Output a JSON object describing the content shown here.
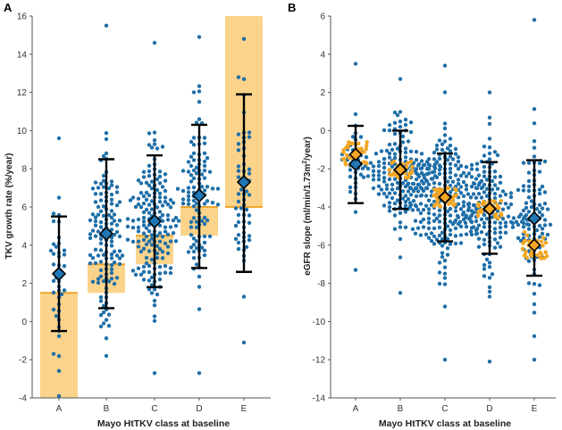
{
  "chart_data": [
    {
      "panel": "A",
      "type": "scatter",
      "title": "",
      "xlabel": "Mayo HtTKV class at baseline",
      "ylabel": "TKV growth rate (%/year)",
      "categories": [
        "A",
        "B",
        "C",
        "D",
        "E"
      ],
      "ylim": [
        -4,
        16
      ],
      "yticks": [
        -4,
        -2,
        0,
        2,
        4,
        6,
        8,
        10,
        12,
        14,
        16
      ],
      "reference_bands": [
        {
          "category": "A",
          "low": -4,
          "high": 1.5
        },
        {
          "category": "B",
          "low": 1.5,
          "high": 3.0
        },
        {
          "category": "C",
          "low": 3.0,
          "high": 4.5
        },
        {
          "category": "D",
          "low": 4.5,
          "high": 6.0
        },
        {
          "category": "E",
          "low": 6.0,
          "high": 16
        }
      ],
      "summary": [
        {
          "category": "A",
          "mean": 2.5,
          "lower": -0.5,
          "upper": 5.5
        },
        {
          "category": "B",
          "mean": 4.6,
          "lower": 0.7,
          "upper": 8.5
        },
        {
          "category": "C",
          "mean": 5.25,
          "lower": 1.8,
          "upper": 8.7
        },
        {
          "category": "D",
          "mean": 6.6,
          "lower": 2.8,
          "upper": 10.3
        },
        {
          "category": "E",
          "mean": 7.3,
          "lower": 2.6,
          "upper": 11.9
        }
      ],
      "points": [
        {
          "category": "A",
          "n": 40,
          "center": 2.5,
          "spread": 2.7,
          "min": -3.9,
          "max": 9.6
        },
        {
          "category": "B",
          "n": 130,
          "center": 4.6,
          "spread": 3.0,
          "min": -1.8,
          "max": 15.5
        },
        {
          "category": "C",
          "n": 170,
          "center": 5.2,
          "spread": 2.8,
          "min": -2.7,
          "max": 14.6
        },
        {
          "category": "D",
          "n": 110,
          "center": 6.6,
          "spread": 3.1,
          "min": -2.7,
          "max": 14.9
        },
        {
          "category": "E",
          "n": 60,
          "center": 7.3,
          "spread": 3.6,
          "min": -1.1,
          "max": 14.8
        }
      ]
    },
    {
      "panel": "B",
      "type": "scatter",
      "title": "",
      "xlabel": "Mayo HtTKV class at baseline",
      "ylabel_main": "eGFR slope (ml/min/1.73m",
      "ylabel_sup": "2",
      "ylabel_tail": "/year)",
      "categories": [
        "A",
        "B",
        "C",
        "D",
        "E"
      ],
      "ylim": [
        -14,
        6
      ],
      "yticks": [
        -14,
        -12,
        -10,
        -8,
        -6,
        -4,
        -2,
        0,
        2,
        4,
        6
      ],
      "predicted": [
        {
          "category": "A",
          "mean": -1.25,
          "lower": -1.9,
          "upper": -0.6
        },
        {
          "category": "B",
          "mean": -2.05,
          "lower": -2.5,
          "upper": -1.6
        },
        {
          "category": "C",
          "mean": -3.5,
          "lower": -4.0,
          "upper": -3.0
        },
        {
          "category": "D",
          "mean": -4.1,
          "lower": -4.6,
          "upper": -3.6
        },
        {
          "category": "E",
          "mean": -6.0,
          "lower": -6.7,
          "upper": -5.3
        }
      ],
      "summary": [
        {
          "category": "A",
          "mean": -1.75,
          "lower": -3.8,
          "upper": 0.25
        },
        {
          "category": "B",
          "mean": -2.05,
          "lower": -4.1,
          "upper": 0.0
        },
        {
          "category": "C",
          "mean": -3.5,
          "lower": -5.8,
          "upper": -1.2
        },
        {
          "category": "D",
          "mean": -4.1,
          "lower": -6.45,
          "upper": -1.65
        },
        {
          "category": "E",
          "mean": -4.6,
          "lower": -7.6,
          "upper": -1.55
        }
      ],
      "points": [
        {
          "category": "A",
          "n": 40,
          "center": -1.8,
          "spread": 1.4,
          "min": -7.3,
          "max": 3.5
        },
        {
          "category": "B",
          "n": 170,
          "center": -2.1,
          "spread": 1.7,
          "min": -8.5,
          "max": 2.7
        },
        {
          "category": "C",
          "n": 240,
          "center": -3.5,
          "spread": 2.2,
          "min": -12.0,
          "max": 3.4
        },
        {
          "category": "D",
          "n": 150,
          "center": -4.1,
          "spread": 2.3,
          "min": -12.1,
          "max": 2.0
        },
        {
          "category": "E",
          "n": 100,
          "center": -4.7,
          "spread": 2.7,
          "min": -12.0,
          "max": 5.8
        }
      ]
    }
  ],
  "colors": {
    "points": "#1f6fa8",
    "band": "#fbd38a",
    "band_line": "#f0a52e",
    "orange_points": "#f5a623",
    "diamond": "#1f77b4",
    "orange_diamond": "#f5a623",
    "errorbar": "#000000",
    "axis": "#555555"
  }
}
